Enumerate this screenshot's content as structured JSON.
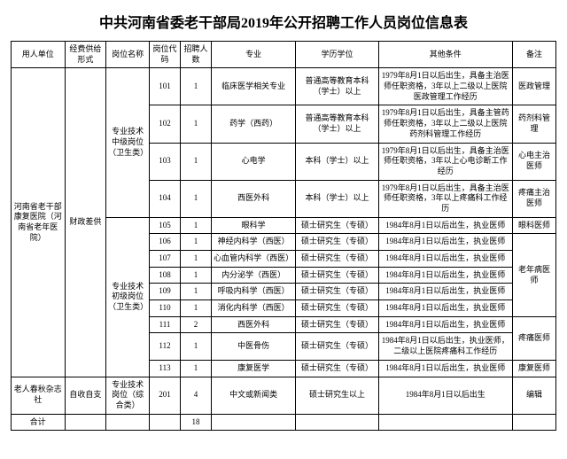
{
  "title": "中共河南省委老干部局2019年公开招聘工作人员岗位信息表",
  "headers": {
    "unit": "用人单位",
    "fund": "经费供给形式",
    "post": "岗位名称",
    "code": "岗位代码",
    "num": "招聘人数",
    "major": "专业",
    "degree": "学历学位",
    "other": "其他条件",
    "remark": "备注"
  },
  "unit1": "河南省老干部康复医院（河南省老年医院）",
  "fund1": "财政差供",
  "post_mid": "专业技术中级岗位（卫生类）",
  "post_jun": "专业技术初级岗位（卫生类）",
  "rows": [
    {
      "code": "101",
      "num": "1",
      "major": "临床医学相关专业",
      "degree": "普通高等教育本科（学士）以上",
      "other": "1979年8月1日以后出生，具备主治医师任职资格，3年以上二级以上医院医政管理工作经历",
      "remark": "医政管理"
    },
    {
      "code": "102",
      "num": "1",
      "major": "药学（西药）",
      "degree": "普通高等教育本科（学士）以上",
      "other": "1979年8月1日以后出生，具备主管药师任职资格，3年以上二级以上医院药剂科管理工作经历",
      "remark": "药剂科管理"
    },
    {
      "code": "103",
      "num": "1",
      "major": "心电学",
      "degree": "本科（学士）以上",
      "other": "1979年8月1日以后出生，具备主治医师任职资格，3年以上心电诊断工作经历",
      "remark": "心电主治医师"
    },
    {
      "code": "104",
      "num": "1",
      "major": "西医外科",
      "degree": "本科（学士）以上",
      "other": "1979年8月1日以后出生，具备主治医师任职资格，3年以上疼痛科工作经历",
      "remark": "疼痛主治医师"
    },
    {
      "code": "105",
      "num": "1",
      "major": "眼科学",
      "degree": "硕士研究生（专硕）",
      "other": "1984年8月1日以后出生，执业医师",
      "remark": "眼科医师"
    },
    {
      "code": "106",
      "num": "1",
      "major": "神经内科学（西医）",
      "degree": "硕士研究生（专硕）",
      "other": "1984年8月1日以后出生，执业医师",
      "remark": ""
    },
    {
      "code": "107",
      "num": "1",
      "major": "心血管内科学（西医）",
      "degree": "硕士研究生（专硕）",
      "other": "1984年8月1日以后出生，执业医师",
      "remark": ""
    },
    {
      "code": "108",
      "num": "1",
      "major": "内分泌学（西医）",
      "degree": "硕士研究生（专硕）",
      "other": "1984年8月1日以后出生，执业医师",
      "remark": ""
    },
    {
      "code": "109",
      "num": "1",
      "major": "呼吸内科学（西医）",
      "degree": "硕士研究生（专硕）",
      "other": "1984年8月1日以后出生，执业医师",
      "remark": ""
    },
    {
      "code": "110",
      "num": "1",
      "major": "消化内科学（西医）",
      "degree": "硕士研究生（专硕）",
      "other": "1984年8月1日以后出生，执业医师",
      "remark": ""
    },
    {
      "code": "111",
      "num": "2",
      "major": "西医外科",
      "degree": "硕士研究生（专硕）",
      "other": "1984年8月1日以后出生，执业医师",
      "remark": ""
    },
    {
      "code": "112",
      "num": "1",
      "major": "中医骨伤",
      "degree": "硕士研究生（专硕）",
      "other": "1984年8月1日以后出生，执业医师，二级以上医院疼痛科工作经历",
      "remark": ""
    },
    {
      "code": "113",
      "num": "1",
      "major": "康复医学",
      "degree": "硕士研究生（专硕）",
      "other": "1984年8月1日以后出生，执业医师",
      "remark": "康复医师"
    }
  ],
  "remark_lnb": "老年病医师",
  "remark_tt": "疼痛医师",
  "unit2": "老人春秋杂志社",
  "fund2": "自收自支",
  "post2": "专业技术岗位（综合类）",
  "row2": {
    "code": "201",
    "num": "4",
    "major": "中文或新闻类",
    "degree": "硕士研究生以上",
    "other": "1984年8月1日以后出生",
    "remark": "编辑"
  },
  "total_label": "合计",
  "total_num": "18"
}
